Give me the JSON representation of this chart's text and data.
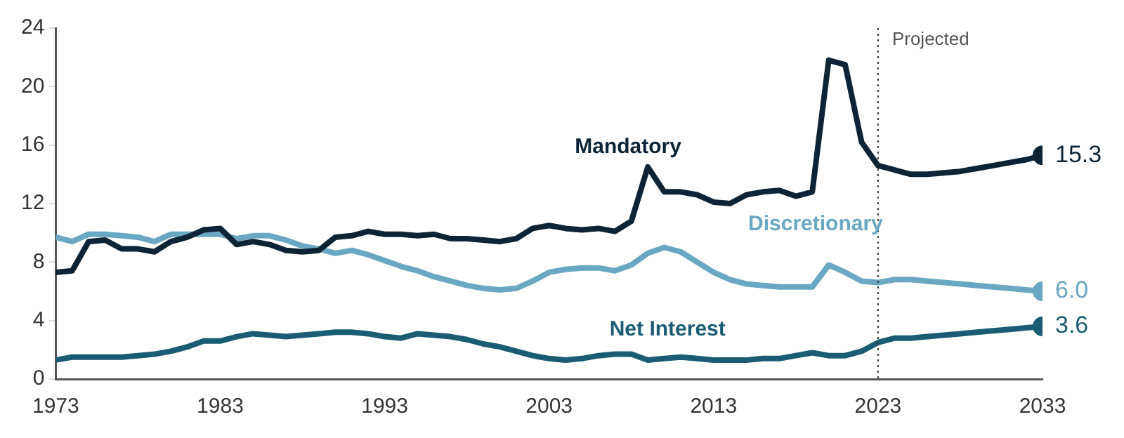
{
  "chart_data": {
    "type": "line",
    "x": [
      1973,
      1974,
      1975,
      1976,
      1977,
      1978,
      1979,
      1980,
      1981,
      1982,
      1983,
      1984,
      1985,
      1986,
      1987,
      1988,
      1989,
      1990,
      1991,
      1992,
      1993,
      1994,
      1995,
      1996,
      1997,
      1998,
      1999,
      2000,
      2001,
      2002,
      2003,
      2004,
      2005,
      2006,
      2007,
      2008,
      2009,
      2010,
      2011,
      2012,
      2013,
      2014,
      2015,
      2016,
      2017,
      2018,
      2019,
      2020,
      2021,
      2022,
      2023,
      2024,
      2025,
      2026,
      2027,
      2028,
      2029,
      2030,
      2031,
      2032,
      2033
    ],
    "series": [
      {
        "name": "Mandatory",
        "color": "#0d2436",
        "values": [
          7.3,
          7.4,
          9.4,
          9.5,
          8.9,
          8.9,
          8.7,
          9.4,
          9.7,
          10.2,
          10.3,
          9.2,
          9.4,
          9.2,
          8.8,
          8.7,
          8.8,
          9.7,
          9.8,
          10.1,
          9.9,
          9.9,
          9.8,
          9.9,
          9.6,
          9.6,
          9.5,
          9.4,
          9.6,
          10.3,
          10.5,
          10.3,
          10.2,
          10.3,
          10.1,
          10.8,
          14.5,
          12.8,
          12.8,
          12.6,
          12.1,
          12.0,
          12.6,
          12.8,
          12.9,
          12.5,
          12.8,
          21.8,
          21.5,
          16.2,
          14.6,
          14.3,
          14.0,
          14.0,
          14.1,
          14.2,
          14.4,
          14.6,
          14.8,
          15.0,
          15.3
        ],
        "value_labels": [
          null,
          null,
          null,
          null,
          null,
          null,
          null,
          null,
          null,
          null,
          null,
          null,
          null,
          null,
          null,
          null,
          null,
          null,
          null,
          null,
          null,
          null,
          null,
          null,
          null,
          null,
          null,
          null,
          null,
          null,
          null,
          null,
          null,
          null,
          null,
          null,
          null,
          null,
          null,
          null,
          null,
          null,
          null,
          null,
          null,
          null,
          null,
          null,
          null,
          null,
          null,
          null,
          null,
          null,
          null,
          null,
          null,
          null,
          null,
          null,
          "15.3"
        ]
      },
      {
        "name": "Discretionary",
        "color": "#6aa7c3",
        "values": [
          9.7,
          9.4,
          9.9,
          9.9,
          9.8,
          9.7,
          9.4,
          9.9,
          9.9,
          9.9,
          9.9,
          9.6,
          9.8,
          9.8,
          9.5,
          9.1,
          8.9,
          8.6,
          8.8,
          8.5,
          8.1,
          7.7,
          7.4,
          7.0,
          6.7,
          6.4,
          6.2,
          6.1,
          6.2,
          6.7,
          7.3,
          7.5,
          7.6,
          7.6,
          7.4,
          7.8,
          8.6,
          9.0,
          8.7,
          8.0,
          7.3,
          6.8,
          6.5,
          6.4,
          6.3,
          6.3,
          6.3,
          7.8,
          7.3,
          6.7,
          6.6,
          6.8,
          6.8,
          6.7,
          6.6,
          6.5,
          6.4,
          6.3,
          6.2,
          6.1,
          6.0
        ],
        "value_labels": [
          null,
          null,
          null,
          null,
          null,
          null,
          null,
          null,
          null,
          null,
          null,
          null,
          null,
          null,
          null,
          null,
          null,
          null,
          null,
          null,
          null,
          null,
          null,
          null,
          null,
          null,
          null,
          null,
          null,
          null,
          null,
          null,
          null,
          null,
          null,
          null,
          null,
          null,
          null,
          null,
          null,
          null,
          null,
          null,
          null,
          null,
          null,
          null,
          null,
          null,
          null,
          null,
          null,
          null,
          null,
          null,
          null,
          null,
          null,
          null,
          "6.0"
        ]
      },
      {
        "name": "Net Interest",
        "color": "#1a5c73",
        "values": [
          1.3,
          1.5,
          1.5,
          1.5,
          1.5,
          1.6,
          1.7,
          1.9,
          2.2,
          2.6,
          2.6,
          2.9,
          3.1,
          3.0,
          2.9,
          3.0,
          3.1,
          3.2,
          3.2,
          3.1,
          2.9,
          2.8,
          3.1,
          3.0,
          2.9,
          2.7,
          2.4,
          2.2,
          1.9,
          1.6,
          1.4,
          1.3,
          1.4,
          1.6,
          1.7,
          1.7,
          1.3,
          1.4,
          1.5,
          1.4,
          1.3,
          1.3,
          1.3,
          1.4,
          1.4,
          1.6,
          1.8,
          1.6,
          1.6,
          1.9,
          2.5,
          2.8,
          2.8,
          2.9,
          3.0,
          3.1,
          3.2,
          3.3,
          3.4,
          3.5,
          3.6
        ],
        "value_labels": [
          null,
          null,
          null,
          null,
          null,
          null,
          null,
          null,
          null,
          null,
          null,
          null,
          null,
          null,
          null,
          null,
          null,
          null,
          null,
          null,
          null,
          null,
          null,
          null,
          null,
          null,
          null,
          null,
          null,
          null,
          null,
          null,
          null,
          null,
          null,
          null,
          null,
          null,
          null,
          null,
          null,
          null,
          null,
          null,
          null,
          null,
          null,
          null,
          null,
          null,
          null,
          null,
          null,
          null,
          null,
          null,
          null,
          null,
          null,
          null,
          "3.6"
        ]
      }
    ],
    "xlim": [
      1973,
      2033
    ],
    "xticks": [
      1973,
      1983,
      1993,
      2003,
      2013,
      2023,
      2033
    ],
    "ylim": [
      0,
      24
    ],
    "yticks": [
      0,
      4,
      8,
      12,
      16,
      20,
      24
    ],
    "grid": false,
    "legend": false,
    "marker": "none",
    "line_style": "solid",
    "ref_lines": [
      {
        "axis": "x",
        "value": 2023,
        "label": "Projected",
        "color": "#333333",
        "line_style": "dotted"
      }
    ]
  }
}
